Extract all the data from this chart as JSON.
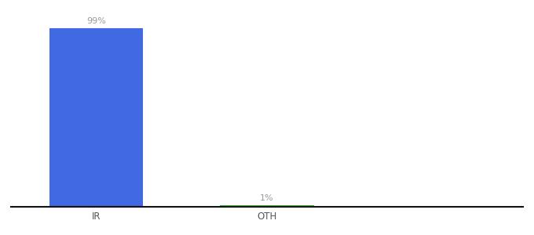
{
  "categories": [
    "IR",
    "OTH"
  ],
  "values": [
    99,
    1
  ],
  "bar_colors": [
    "#4169e1",
    "#22bb22"
  ],
  "labels": [
    "99%",
    "1%"
  ],
  "background_color": "#ffffff",
  "label_color": "#999999",
  "bar_width": 0.55,
  "ylim": [
    0,
    108
  ],
  "xlim": [
    -0.5,
    2.5
  ],
  "x_positions": [
    0,
    1
  ],
  "label_fontsize": 8,
  "tick_fontsize": 8.5
}
